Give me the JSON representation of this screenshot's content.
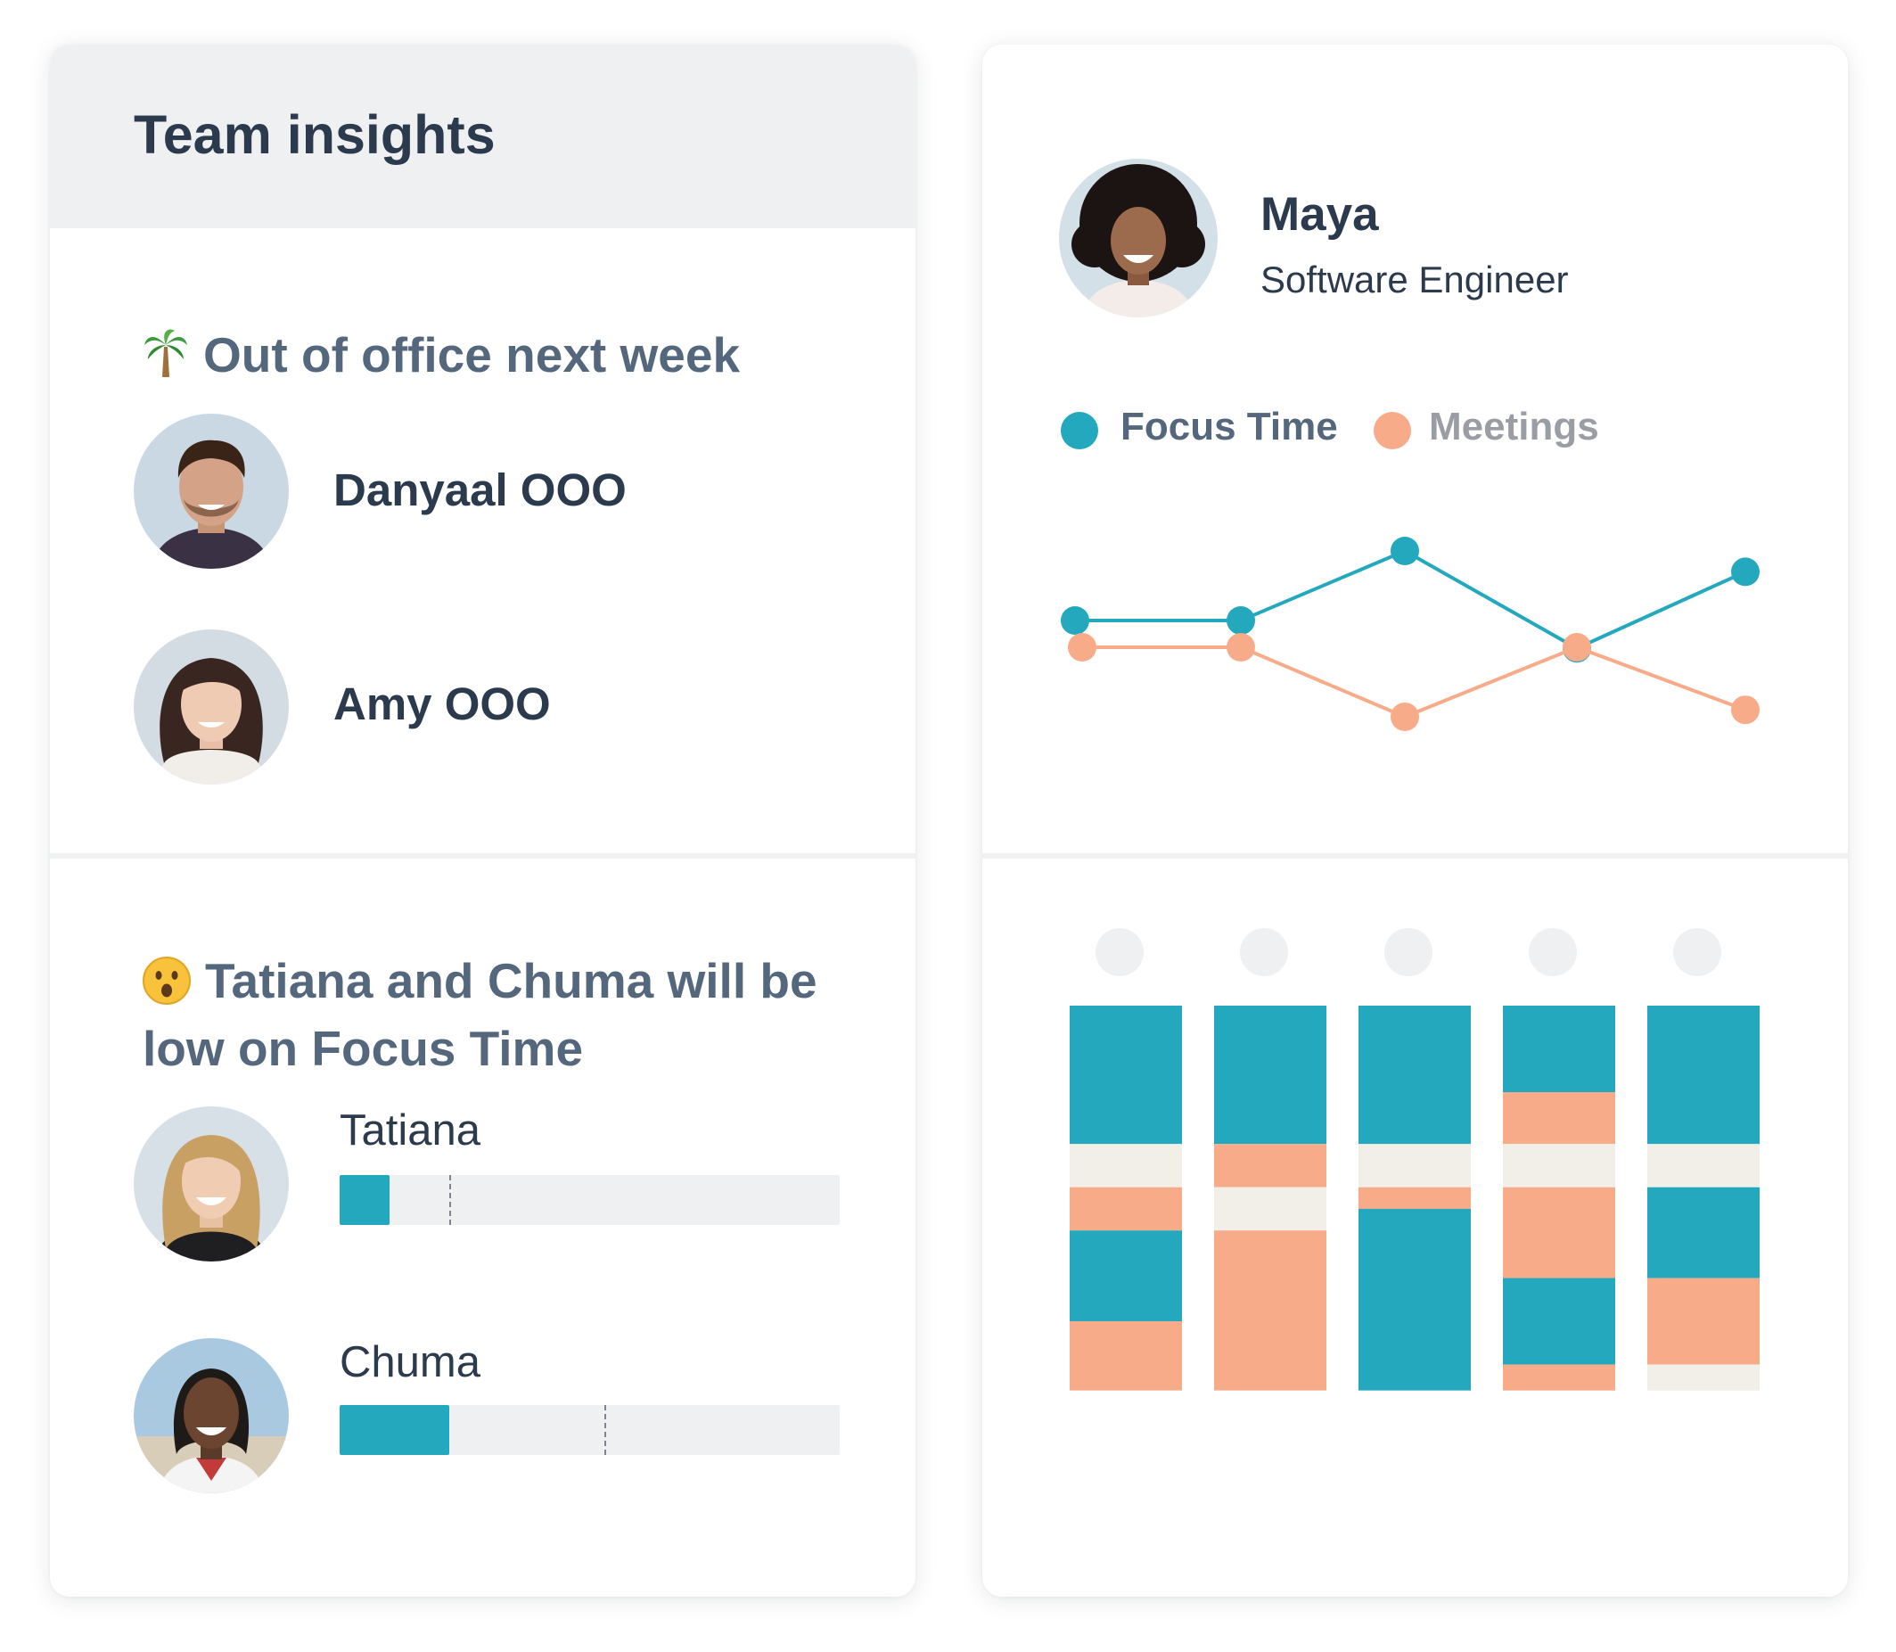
{
  "team_insights": {
    "title": "Team insights",
    "ooo_section": {
      "emoji": "🌴",
      "title": "Out of office next week",
      "people": [
        {
          "label": "Danyaal OOO"
        },
        {
          "label": "Amy OOO"
        }
      ]
    },
    "focus_section": {
      "emoji": "😮",
      "title_line1": "Tatiana and Chuma will be",
      "title_line2": "low on Focus Time",
      "people": [
        {
          "name": "Tatiana",
          "fill_fraction": 0.1,
          "target_fraction": 0.22
        },
        {
          "name": "Chuma",
          "fill_fraction": 0.22,
          "target_fraction": 0.53
        }
      ]
    }
  },
  "profile": {
    "name": "Maya",
    "role": "Software Engineer"
  },
  "colors": {
    "focus": "#24a8bd",
    "meetings": "#f8ab88",
    "other": "#f2efe9",
    "legend_focus_text": "#55677d",
    "legend_meetings_text": "#9a9ea4"
  },
  "chart_data": [
    {
      "type": "line",
      "series": [
        {
          "name": "Focus Time",
          "values": [
            3.0,
            3.0,
            4.0,
            2.6,
            3.7
          ]
        },
        {
          "name": "Meetings",
          "values": [
            3.0,
            3.0,
            2.0,
            3.0,
            2.1
          ]
        }
      ],
      "legend": "top-left",
      "grid": false
    },
    {
      "type": "bar",
      "categories": [
        "",
        "",
        "",
        "",
        ""
      ],
      "segments": [
        [
          [
            "focus",
            3.2
          ],
          [
            "other",
            1.0
          ],
          [
            "meetings",
            1.0
          ],
          [
            "focus",
            2.1
          ],
          [
            "meetings",
            1.6
          ]
        ],
        [
          [
            "focus",
            3.2
          ],
          [
            "meetings",
            1.0
          ],
          [
            "other",
            1.0
          ],
          [
            "meetings",
            3.7
          ]
        ],
        [
          [
            "focus",
            3.2
          ],
          [
            "other",
            1.0
          ],
          [
            "meetings",
            0.5
          ],
          [
            "focus",
            4.2
          ]
        ],
        [
          [
            "focus",
            2.0
          ],
          [
            "meetings",
            1.2
          ],
          [
            "other",
            1.0
          ],
          [
            "meetings",
            2.1
          ],
          [
            "focus",
            2.0
          ],
          [
            "meetings",
            0.6
          ]
        ],
        [
          [
            "focus",
            3.2
          ],
          [
            "other",
            1.0
          ],
          [
            "focus",
            2.1
          ],
          [
            "meetings",
            2.0
          ],
          [
            "other",
            0.6
          ]
        ]
      ]
    }
  ]
}
